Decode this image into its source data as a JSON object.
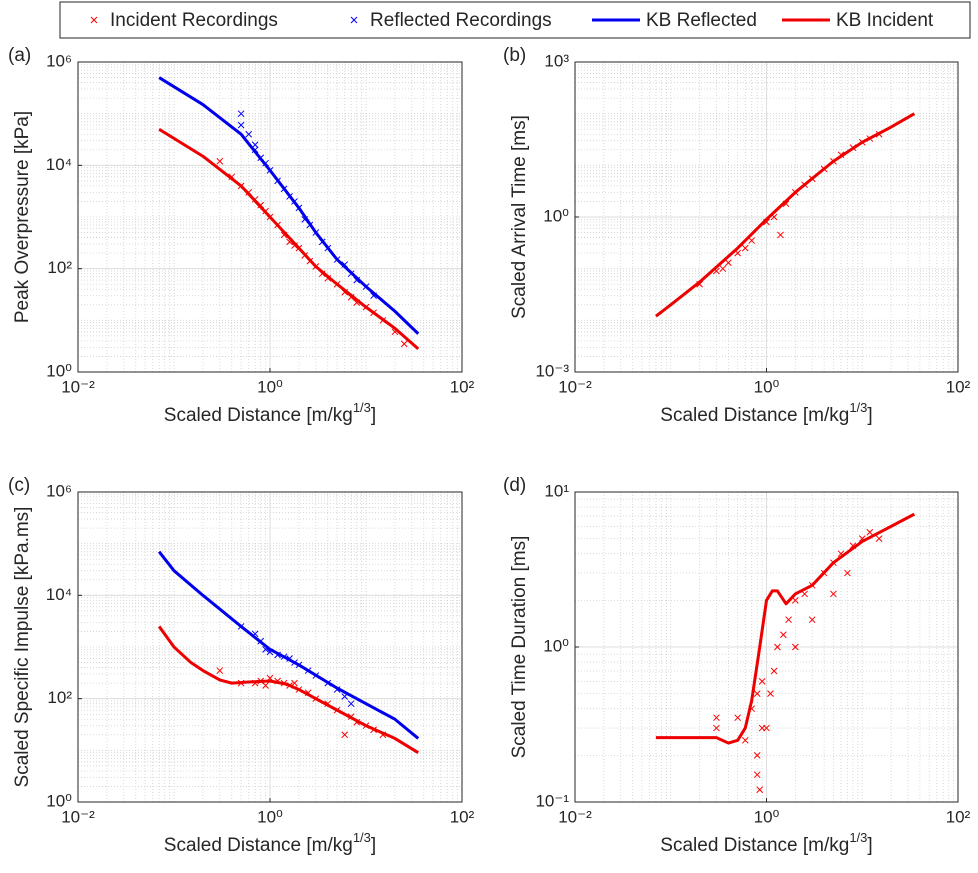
{
  "legend": "top-outside",
  "chart_data": [
    {
      "type": "line",
      "panel_label": "(a)",
      "x_label": [
        "Scaled Distance [m/kg",
        "1/3",
        "]"
      ],
      "y_label": "Peak Overpressure [kPa]",
      "log_x": true,
      "log_y": true,
      "grid": true,
      "minor_grid": true,
      "xlim": [
        0.01,
        100
      ],
      "xticks": [
        {
          "value": 0.01,
          "label": "10⁻²"
        },
        {
          "value": 1,
          "label": "10⁰"
        },
        {
          "value": 100,
          "label": "10²"
        }
      ],
      "ylim": [
        1,
        1000000
      ],
      "yticks": [
        {
          "value": 1,
          "label": "10⁰"
        },
        {
          "value": 100,
          "label": "10²"
        },
        {
          "value": 10000,
          "label": "10⁴"
        },
        {
          "value": 1000000,
          "label": "10⁶"
        }
      ],
      "series": [
        {
          "name": "Incident Recordings",
          "type": "scatter",
          "color": "#ff0000",
          "x": [
            0.3,
            0.4,
            0.5,
            0.6,
            0.7,
            0.8,
            0.9,
            1.0,
            1.2,
            1.4,
            1.6,
            1.8,
            2.0,
            2.3,
            2.6,
            3.0,
            3.5,
            4.0,
            5.0,
            6.0,
            7.0,
            8.0,
            10,
            12,
            15,
            20,
            25
          ],
          "values": [
            12000,
            6000,
            4000,
            3000,
            2200,
            1700,
            1300,
            1000,
            700,
            450,
            330,
            280,
            250,
            180,
            140,
            110,
            80,
            65,
            50,
            35,
            28,
            22,
            18,
            14,
            10,
            6,
            3.5
          ]
        },
        {
          "name": "Reflected Recordings",
          "type": "scatter",
          "color": "#0000ff",
          "x": [
            0.5,
            0.5,
            0.6,
            0.7,
            0.7,
            0.8,
            0.9,
            1.0,
            1.2,
            1.4,
            1.6,
            1.8,
            2.0,
            2.3,
            2.6,
            3.0,
            3.5,
            4.0,
            5.0,
            6.0,
            7.0,
            8.0,
            10,
            12
          ],
          "values": [
            100000,
            60000,
            40000,
            25000,
            20000,
            14000,
            11000,
            8000,
            5000,
            3500,
            2500,
            2000,
            1500,
            900,
            700,
            500,
            330,
            250,
            150,
            120,
            80,
            60,
            45,
            30
          ]
        },
        {
          "name": "KB Reflected",
          "type": "line",
          "color": "#0000ee",
          "x": [
            0.07,
            0.2,
            0.5,
            1,
            2,
            3,
            5,
            10,
            20,
            35
          ],
          "values": [
            500000,
            150000,
            40000,
            8000,
            1500,
            500,
            150,
            45,
            15,
            5.5
          ]
        },
        {
          "name": "KB Incident",
          "type": "line",
          "color": "#ee0000",
          "x": [
            0.07,
            0.2,
            0.5,
            1,
            2,
            3,
            5,
            10,
            20,
            35
          ],
          "values": [
            50000,
            15000,
            4000,
            1000,
            250,
            110,
            50,
            18,
            7,
            2.8
          ]
        }
      ]
    },
    {
      "type": "line",
      "panel_label": "(b)",
      "x_label": [
        "Scaled Distance [m/kg",
        "1/3",
        "]"
      ],
      "y_label": "Scaled Arrival Time [ms]",
      "log_x": true,
      "log_y": true,
      "grid": true,
      "minor_grid": true,
      "xlim": [
        0.01,
        100
      ],
      "xticks": [
        {
          "value": 0.01,
          "label": "10⁻²"
        },
        {
          "value": 1,
          "label": "10⁰"
        },
        {
          "value": 100,
          "label": "10²"
        }
      ],
      "ylim": [
        0.001,
        1000
      ],
      "yticks": [
        {
          "value": 0.001,
          "label": "10⁻³"
        },
        {
          "value": 1,
          "label": "10⁰"
        },
        {
          "value": 1000,
          "label": "10³"
        }
      ],
      "series": [
        {
          "name": "Incident Recordings",
          "type": "scatter",
          "color": "#ff0000",
          "x": [
            0.2,
            0.3,
            0.35,
            0.4,
            0.5,
            0.6,
            0.7,
            1.0,
            1.2,
            1.4,
            1.6,
            2.0,
            2.5,
            3,
            4,
            5,
            6,
            8,
            10,
            12,
            15
          ],
          "values": [
            0.05,
            0.09,
            0.1,
            0.13,
            0.2,
            0.25,
            0.35,
            0.8,
            1.0,
            0.45,
            1.8,
            3,
            4.2,
            5.5,
            8.5,
            12,
            16,
            22,
            28,
            33,
            40
          ]
        },
        {
          "name": "KB Incident",
          "type": "line",
          "color": "#ee0000",
          "x": [
            0.07,
            0.1,
            0.2,
            0.5,
            1,
            2,
            5,
            10,
            20,
            35
          ],
          "values": [
            0.012,
            0.02,
            0.055,
            0.25,
            0.9,
            3,
            12,
            28,
            55,
            100
          ]
        }
      ]
    },
    {
      "type": "line",
      "panel_label": "(c)",
      "x_label": [
        "Scaled Distance [m/kg",
        "1/3",
        "]"
      ],
      "y_label": "Scaled Specific Impulse [kPa.ms]",
      "log_x": true,
      "log_y": true,
      "grid": true,
      "minor_grid": true,
      "xlim": [
        0.01,
        100
      ],
      "xticks": [
        {
          "value": 0.01,
          "label": "10⁻²"
        },
        {
          "value": 1,
          "label": "10⁰"
        },
        {
          "value": 100,
          "label": "10²"
        }
      ],
      "ylim": [
        1,
        1000000
      ],
      "yticks": [
        {
          "value": 1,
          "label": "10⁰"
        },
        {
          "value": 100,
          "label": "10²"
        },
        {
          "value": 10000,
          "label": "10⁴"
        },
        {
          "value": 1000000,
          "label": "10⁶"
        }
      ],
      "series": [
        {
          "name": "Incident Recordings",
          "type": "scatter",
          "color": "#ff0000",
          "x": [
            0.3,
            0.5,
            0.7,
            0.8,
            0.9,
            1.0,
            1.2,
            1.4,
            1.6,
            1.8,
            2,
            2.5,
            3,
            4,
            5,
            6,
            7,
            8,
            10,
            12,
            15
          ],
          "values": [
            350,
            200,
            200,
            220,
            180,
            250,
            220,
            200,
            180,
            200,
            150,
            130,
            100,
            80,
            60,
            20,
            45,
            35,
            30,
            25,
            20
          ]
        },
        {
          "name": "Reflected Recordings",
          "type": "scatter",
          "color": "#0000ff",
          "x": [
            0.5,
            0.7,
            0.8,
            0.9,
            1.0,
            1.2,
            1.4,
            1.6,
            1.8,
            2,
            2.5,
            3,
            4,
            5,
            6,
            7
          ],
          "values": [
            2500,
            1800,
            1300,
            900,
            800,
            700,
            650,
            600,
            500,
            450,
            350,
            280,
            200,
            150,
            110,
            80
          ]
        },
        {
          "name": "KB Reflected",
          "type": "line",
          "color": "#0000ee",
          "x": [
            0.07,
            0.1,
            0.2,
            0.5,
            1,
            2,
            5,
            10,
            20,
            35
          ],
          "values": [
            70000,
            30000,
            10000,
            2500,
            900,
            450,
            160,
            80,
            40,
            17
          ]
        },
        {
          "name": "KB Incident",
          "type": "line",
          "color": "#ee0000",
          "x": [
            0.07,
            0.1,
            0.15,
            0.2,
            0.3,
            0.4,
            0.6,
            1,
            1.5,
            2,
            5,
            10,
            20,
            35
          ],
          "values": [
            2500,
            1000,
            500,
            350,
            230,
            200,
            210,
            220,
            190,
            150,
            60,
            30,
            17,
            9
          ]
        }
      ]
    },
    {
      "type": "line",
      "panel_label": "(d)",
      "x_label": [
        "Scaled Distance [m/kg",
        "1/3",
        "]"
      ],
      "y_label": "Scaled Time Duration [ms]",
      "log_x": true,
      "log_y": true,
      "grid": true,
      "minor_grid": true,
      "xlim": [
        0.01,
        100
      ],
      "xticks": [
        {
          "value": 0.01,
          "label": "10⁻²"
        },
        {
          "value": 1,
          "label": "10⁰"
        },
        {
          "value": 100,
          "label": "10²"
        }
      ],
      "ylim": [
        0.1,
        10
      ],
      "yticks": [
        {
          "value": 0.1,
          "label": "10⁻¹"
        },
        {
          "value": 1,
          "label": "10⁰"
        },
        {
          "value": 10,
          "label": "10¹"
        }
      ],
      "series": [
        {
          "name": "Incident Recordings",
          "type": "scatter",
          "color": "#ff0000",
          "x": [
            0.3,
            0.3,
            0.5,
            0.6,
            0.7,
            0.8,
            0.8,
            0.8,
            0.85,
            0.9,
            0.9,
            1.0,
            1.1,
            1.2,
            1.3,
            1.5,
            1.7,
            2,
            2,
            2.5,
            3,
            3,
            4,
            5,
            5,
            6,
            7,
            8,
            10,
            12,
            15
          ],
          "values": [
            0.35,
            0.3,
            0.35,
            0.25,
            0.4,
            0.15,
            0.2,
            0.5,
            0.12,
            0.3,
            0.6,
            0.3,
            0.5,
            0.7,
            1.0,
            1.2,
            1.5,
            2,
            1.0,
            2.2,
            2.5,
            1.5,
            3,
            3.5,
            2.2,
            4,
            3,
            4.5,
            5,
            5.5,
            5
          ]
        },
        {
          "name": "KB Incident",
          "type": "line",
          "color": "#ee0000",
          "x": [
            0.07,
            0.2,
            0.3,
            0.4,
            0.5,
            0.6,
            0.7,
            0.85,
            1,
            1.15,
            1.3,
            1.6,
            2,
            3,
            5,
            10,
            20,
            35
          ],
          "values": [
            0.26,
            0.26,
            0.26,
            0.24,
            0.25,
            0.3,
            0.45,
            1.0,
            2.0,
            2.3,
            2.3,
            1.9,
            2.2,
            2.5,
            3.5,
            4.8,
            6,
            7.2
          ]
        }
      ]
    }
  ]
}
